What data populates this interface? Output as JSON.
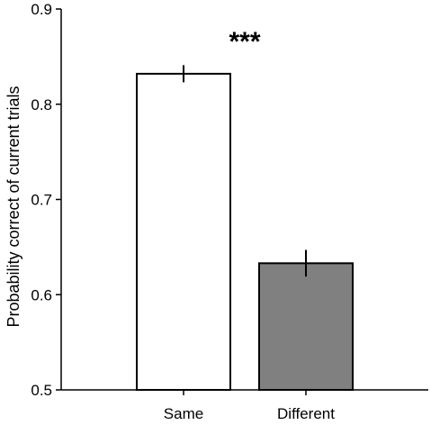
{
  "chart_data": {
    "type": "bar",
    "title": "",
    "xlabel": "",
    "ylabel": "Probability correct of current trials",
    "ylim": [
      0.5,
      0.9
    ],
    "yticks": [
      "0.5",
      "0.6",
      "0.7",
      "0.8",
      "0.9"
    ],
    "categories": [
      "Same",
      "Different"
    ],
    "values": [
      0.832,
      0.633
    ],
    "errors": [
      0.009,
      0.014
    ],
    "bar_colors": [
      "#ffffff",
      "#808080"
    ],
    "edge_color": "#000000",
    "annotation": "***",
    "grid": false,
    "legend": "none"
  }
}
